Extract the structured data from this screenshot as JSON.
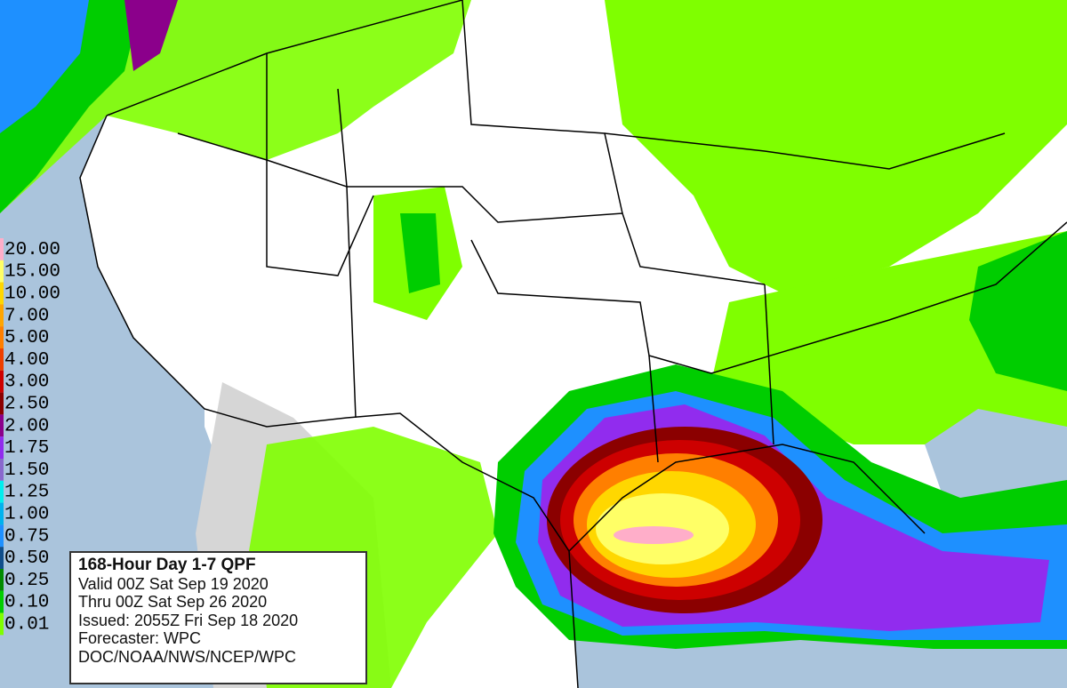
{
  "legend": {
    "entries": [
      {
        "label": "20.00",
        "color": "#ffaec9"
      },
      {
        "label": "15.00",
        "color": "#ffff66"
      },
      {
        "label": "10.00",
        "color": "#ffd700"
      },
      {
        "label": "7.00",
        "color": "#ffa500"
      },
      {
        "label": "5.00",
        "color": "#ff7f00"
      },
      {
        "label": "4.00",
        "color": "#ee4000"
      },
      {
        "label": "3.00",
        "color": "#cd0000"
      },
      {
        "label": "2.50",
        "color": "#8b0000"
      },
      {
        "label": "2.00",
        "color": "#8b008b"
      },
      {
        "label": "1.75",
        "color": "#912cee"
      },
      {
        "label": "1.50",
        "color": "#8968cd"
      },
      {
        "label": "1.25",
        "color": "#00eeee"
      },
      {
        "label": "1.00",
        "color": "#00b2ee"
      },
      {
        "label": "0.75",
        "color": "#1e90ff"
      },
      {
        "label": "0.50",
        "color": "#104e8b"
      },
      {
        "label": "0.25",
        "color": "#008b00"
      },
      {
        "label": "0.10",
        "color": "#00cd00"
      },
      {
        "label": "0.01",
        "color": "#7fff00"
      }
    ]
  },
  "info": {
    "title": "168-Hour Day 1-7 QPF",
    "lines": [
      "Valid 00Z Sat Sep 19 2020",
      "Thru 00Z Sat Sep 26 2020",
      "Issued: 2055Z Fri Sep 18 2020",
      "Forecaster: WPC",
      "DOC/NOAA/NWS/NCEP/WPC"
    ]
  }
}
